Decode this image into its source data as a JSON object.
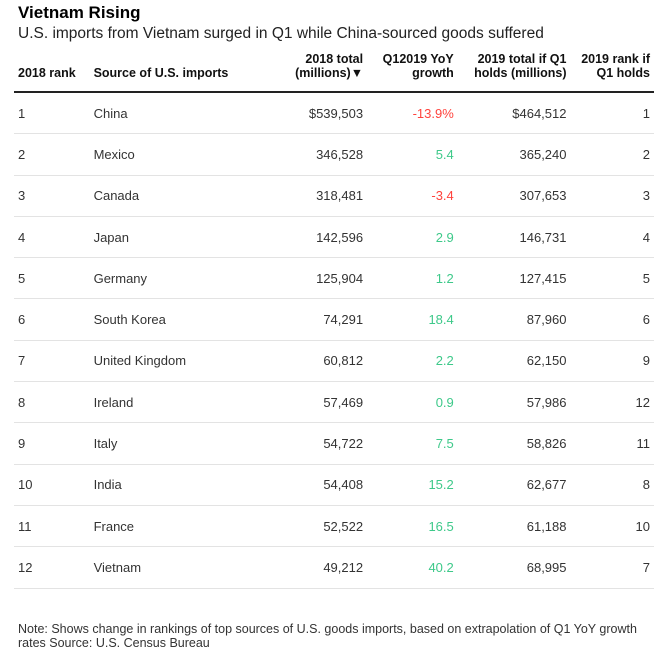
{
  "title": "Vietnam Rising",
  "subtitle": "U.S. imports from Vietnam surged in Q1 while China-sourced goods suffered",
  "note": "Note: Shows change in rankings of top sources of U.S. goods imports, based on extrapolation of Q1 YoY growth rates Source: U.S. Census Bureau",
  "colors": {
    "negative": "#ff433d",
    "positive": "#3ec98a"
  },
  "chart_data": {
    "type": "table",
    "title": "Vietnam Rising",
    "columns": [
      "2018 rank",
      "Source of U.S. imports",
      "2018 total (millions)▼",
      "Q12019 YoY growth",
      "2019 total if Q1 holds (millions)",
      "2019 rank if Q1 holds"
    ],
    "rows": [
      {
        "rank": "1",
        "source": "China",
        "total_2018": "$539,503",
        "yoy": "-13.9%",
        "yoy_value": -13.9,
        "total_2019": "$464,512",
        "rank_2019": "1"
      },
      {
        "rank": "2",
        "source": "Mexico",
        "total_2018": "346,528",
        "yoy": "5.4",
        "yoy_value": 5.4,
        "total_2019": "365,240",
        "rank_2019": "2"
      },
      {
        "rank": "3",
        "source": "Canada",
        "total_2018": "318,481",
        "yoy": "-3.4",
        "yoy_value": -3.4,
        "total_2019": "307,653",
        "rank_2019": "3"
      },
      {
        "rank": "4",
        "source": "Japan",
        "total_2018": "142,596",
        "yoy": "2.9",
        "yoy_value": 2.9,
        "total_2019": "146,731",
        "rank_2019": "4"
      },
      {
        "rank": "5",
        "source": "Germany",
        "total_2018": "125,904",
        "yoy": "1.2",
        "yoy_value": 1.2,
        "total_2019": "127,415",
        "rank_2019": "5"
      },
      {
        "rank": "6",
        "source": "South Korea",
        "total_2018": "74,291",
        "yoy": "18.4",
        "yoy_value": 18.4,
        "total_2019": "87,960",
        "rank_2019": "6"
      },
      {
        "rank": "7",
        "source": "United Kingdom",
        "total_2018": "60,812",
        "yoy": "2.2",
        "yoy_value": 2.2,
        "total_2019": "62,150",
        "rank_2019": "9"
      },
      {
        "rank": "8",
        "source": "Ireland",
        "total_2018": "57,469",
        "yoy": "0.9",
        "yoy_value": 0.9,
        "total_2019": "57,986",
        "rank_2019": "12"
      },
      {
        "rank": "9",
        "source": "Italy",
        "total_2018": "54,722",
        "yoy": "7.5",
        "yoy_value": 7.5,
        "total_2019": "58,826",
        "rank_2019": "11"
      },
      {
        "rank": "10",
        "source": "India",
        "total_2018": "54,408",
        "yoy": "15.2",
        "yoy_value": 15.2,
        "total_2019": "62,677",
        "rank_2019": "8"
      },
      {
        "rank": "11",
        "source": "France",
        "total_2018": "52,522",
        "yoy": "16.5",
        "yoy_value": 16.5,
        "total_2019": "61,188",
        "rank_2019": "10"
      },
      {
        "rank": "12",
        "source": "Vietnam",
        "total_2018": "49,212",
        "yoy": "40.2",
        "yoy_value": 40.2,
        "total_2019": "68,995",
        "rank_2019": "7"
      }
    ]
  }
}
